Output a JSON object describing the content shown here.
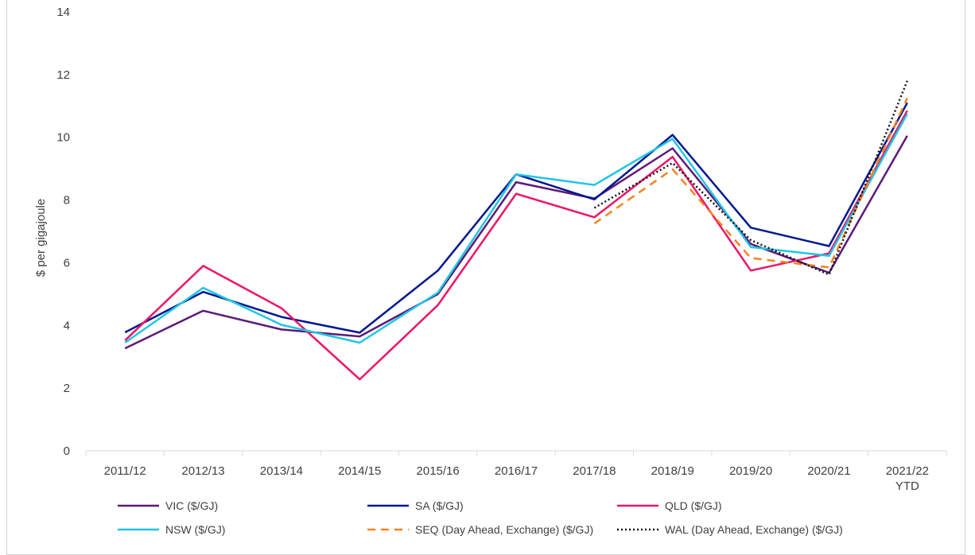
{
  "chart_data": {
    "type": "line",
    "title": "",
    "ylabel": "$ per gigajoule",
    "xlabel": "",
    "ylim": [
      0,
      14
    ],
    "yticks": [
      0,
      2,
      4,
      6,
      8,
      10,
      12,
      14
    ],
    "grid": false,
    "legend_position": "bottom",
    "categories": [
      "2011/12",
      "2012/13",
      "2013/14",
      "2014/15",
      "2015/16",
      "2016/17",
      "2017/18",
      "2018/19",
      "2019/20",
      "2020/21",
      "2021/22\nYTD"
    ],
    "series": [
      {
        "name": "VIC ($/GJ)",
        "color": "#5c1a78",
        "dash": "solid",
        "values": [
          3.27,
          4.47,
          3.87,
          3.65,
          5.0,
          8.57,
          8.05,
          9.65,
          6.6,
          5.68,
          10.05
        ]
      },
      {
        "name": "SA ($/GJ)",
        "color": "#00188f",
        "dash": "solid",
        "values": [
          3.78,
          5.07,
          4.27,
          3.77,
          5.75,
          8.82,
          8.02,
          10.08,
          7.12,
          6.53,
          11.1
        ]
      },
      {
        "name": "QLD ($/GJ)",
        "color": "#ec1566",
        "dash": "solid",
        "values": [
          3.52,
          5.9,
          4.55,
          2.28,
          4.65,
          8.2,
          7.45,
          9.38,
          5.75,
          6.3,
          10.85
        ]
      },
      {
        "name": "NSW ($/GJ)",
        "color": "#1fc6e6",
        "dash": "solid",
        "values": [
          3.45,
          5.2,
          4.02,
          3.45,
          5.05,
          8.82,
          8.48,
          9.95,
          6.5,
          6.22,
          10.75
        ]
      },
      {
        "name": "SEQ (Day Ahead, Exchange) ($/GJ)",
        "color": "#f58220",
        "dash": "dashed",
        "values": [
          null,
          null,
          null,
          null,
          null,
          null,
          7.25,
          8.98,
          6.15,
          5.85,
          11.25
        ]
      },
      {
        "name": "WAL (Day Ahead, Exchange) ($/GJ)",
        "color": "#111111",
        "dash": "dotted",
        "values": [
          null,
          null,
          null,
          null,
          null,
          null,
          7.75,
          9.18,
          6.72,
          5.62,
          11.8
        ]
      }
    ]
  }
}
